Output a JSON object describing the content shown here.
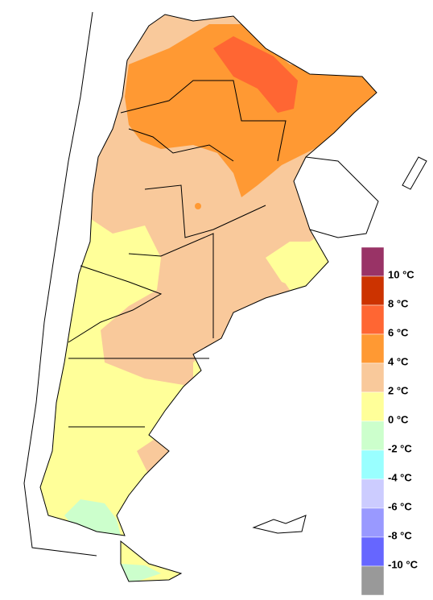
{
  "legend": {
    "labels": [
      "10 °C",
      "8 °C",
      "6 °C",
      "4 °C",
      "2 °C",
      "0 °C",
      "-2 °C",
      "-4 °C",
      "-6 °C",
      "-8 °C",
      "-10 °C"
    ],
    "colors": [
      "#993366",
      "#cc3300",
      "#ff6633",
      "#ff9933",
      "#f9c99b",
      "#ffff99",
      "#ccffcc",
      "#99ffff",
      "#ccccff",
      "#9999ff",
      "#6666ff",
      "#999999"
    ]
  }
}
